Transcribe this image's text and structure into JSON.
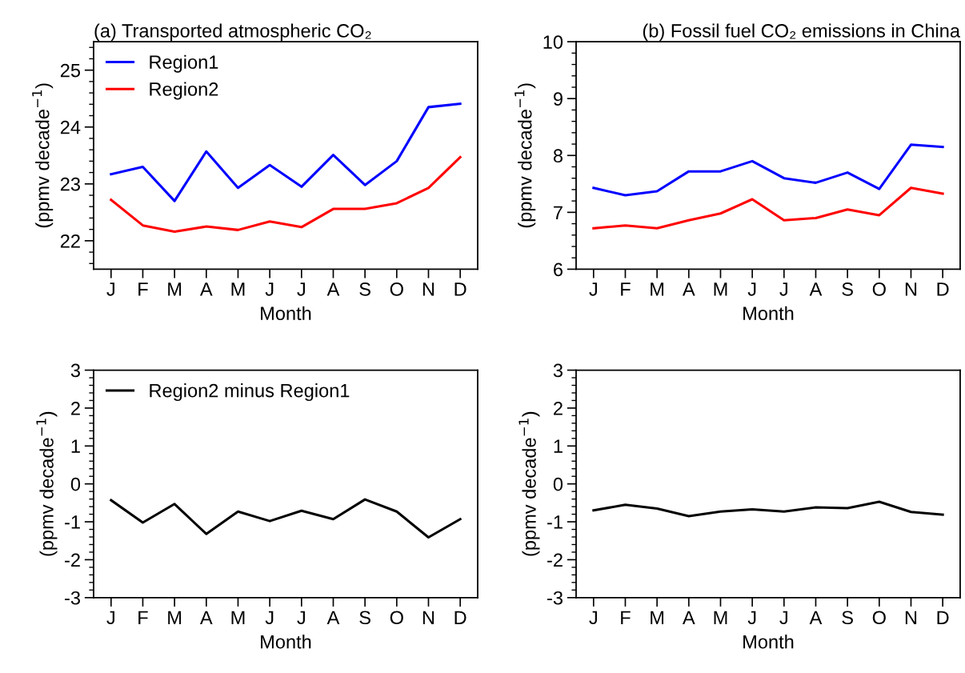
{
  "chart_data": [
    {
      "type": "line",
      "title": "(a) Transported atmospheric CO₂",
      "xlabel": "Month",
      "ylabel": "(ppmv decade$^{−1}$)",
      "categories": [
        "J",
        "F",
        "M",
        "A",
        "M",
        "J",
        "J",
        "A",
        "S",
        "O",
        "N",
        "D"
      ],
      "series": [
        {
          "name": "Region1",
          "color": "#0000ff",
          "values": [
            23.17,
            23.3,
            22.7,
            23.57,
            22.93,
            23.33,
            22.95,
            23.51,
            22.98,
            23.4,
            24.35,
            24.41
          ]
        },
        {
          "name": "Region2",
          "color": "#ff0000",
          "values": [
            22.72,
            22.27,
            22.16,
            22.25,
            22.19,
            22.34,
            22.24,
            22.56,
            22.56,
            22.66,
            22.93,
            23.47
          ]
        }
      ],
      "ylim": [
        21.5,
        25.5
      ],
      "yticks": [
        {
          "value": 21.6,
          "label": null
        },
        {
          "value": 21.8,
          "label": null
        },
        22,
        {
          "value": 22.2,
          "label": null
        },
        {
          "value": 22.4,
          "label": null
        },
        {
          "value": 22.6,
          "label": null
        },
        {
          "value": 22.8,
          "label": null
        },
        23,
        {
          "value": 23.2,
          "label": null
        },
        {
          "value": 23.4,
          "label": null
        },
        {
          "value": 23.6,
          "label": null
        },
        {
          "value": 23.8,
          "label": null
        },
        24,
        {
          "value": 24.2,
          "label": null
        },
        {
          "value": 24.4,
          "label": null
        },
        {
          "value": 24.6,
          "label": null
        },
        {
          "value": 24.8,
          "label": null
        },
        25,
        {
          "value": 25.2,
          "label": null
        },
        {
          "value": 25.4,
          "label": null
        }
      ],
      "legend": "top left",
      "grid": false
    },
    {
      "type": "line",
      "title": "(b) Fossil fuel CO₂ emissions in China",
      "xlabel": "Month",
      "ylabel": "(ppmv decade$^{−1}$)",
      "categories": [
        "J",
        "F",
        "M",
        "A",
        "M",
        "J",
        "J",
        "A",
        "S",
        "O",
        "N",
        "D"
      ],
      "series": [
        {
          "color": "#0000ff",
          "values": [
            7.43,
            7.3,
            7.37,
            7.72,
            7.72,
            7.9,
            7.6,
            7.52,
            7.7,
            7.41,
            8.19,
            8.15
          ]
        },
        {
          "color": "#ff0000",
          "values": [
            6.72,
            6.77,
            6.72,
            6.86,
            6.98,
            7.23,
            6.86,
            6.9,
            7.05,
            6.95,
            7.43,
            7.33
          ]
        }
      ],
      "ylim": [
        6,
        10
      ],
      "yticks": [
        6,
        {
          "value": 6.2,
          "label": null
        },
        {
          "value": 6.4,
          "label": null
        },
        {
          "value": 6.6,
          "label": null
        },
        {
          "value": 6.8,
          "label": null
        },
        7,
        {
          "value": 7.2,
          "label": null
        },
        {
          "value": 7.4,
          "label": null
        },
        {
          "value": 7.6,
          "label": null
        },
        {
          "value": 7.8,
          "label": null
        },
        8,
        {
          "value": 8.2,
          "label": null
        },
        {
          "value": 8.4,
          "label": null
        },
        {
          "value": 8.6,
          "label": null
        },
        {
          "value": 8.8,
          "label": null
        },
        9,
        {
          "value": 9.2,
          "label": null
        },
        {
          "value": 9.4,
          "label": null
        },
        {
          "value": 9.6,
          "label": null
        },
        {
          "value": 9.8,
          "label": null
        },
        10
      ],
      "legend": false,
      "grid": false
    },
    {
      "type": "line",
      "xlabel": "Month",
      "ylabel": "(ppmv decade$^{−1}$)",
      "categories": [
        "J",
        "F",
        "M",
        "A",
        "M",
        "J",
        "J",
        "A",
        "S",
        "O",
        "N",
        "D"
      ],
      "series": [
        {
          "name": "Region2 minus Region1",
          "color": "#000000",
          "values": [
            -0.43,
            -1.02,
            -0.53,
            -1.32,
            -0.73,
            -0.98,
            -0.71,
            -0.93,
            -0.41,
            -0.73,
            -1.41,
            -0.93
          ]
        }
      ],
      "ylim": [
        -3,
        3
      ],
      "yticks": [
        -3,
        {
          "value": -2.8,
          "label": null
        },
        {
          "value": -2.6,
          "label": null
        },
        {
          "value": -2.4,
          "label": null
        },
        {
          "value": -2.2,
          "label": null
        },
        -2,
        {
          "value": -1.8,
          "label": null
        },
        {
          "value": -1.6,
          "label": null
        },
        {
          "value": -1.4,
          "label": null
        },
        {
          "value": -1.2,
          "label": null
        },
        -1,
        {
          "value": -0.8,
          "label": null
        },
        {
          "value": -0.6,
          "label": null
        },
        {
          "value": -0.4,
          "label": null
        },
        {
          "value": -0.2,
          "label": null
        },
        0,
        {
          "value": 0.2,
          "label": null
        },
        {
          "value": 0.4,
          "label": null
        },
        {
          "value": 0.6,
          "label": null
        },
        {
          "value": 0.8,
          "label": null
        },
        1,
        {
          "value": 1.2,
          "label": null
        },
        {
          "value": 1.4,
          "label": null
        },
        {
          "value": 1.6,
          "label": null
        },
        {
          "value": 1.8,
          "label": null
        },
        2,
        {
          "value": 2.2,
          "label": null
        },
        {
          "value": 2.4,
          "label": null
        },
        {
          "value": 2.6,
          "label": null
        },
        {
          "value": 2.8,
          "label": null
        },
        3
      ],
      "legend": "top left",
      "grid": false
    },
    {
      "type": "line",
      "xlabel": "Month",
      "ylabel": "(ppmv decade$^{−1}$)",
      "categories": [
        "J",
        "F",
        "M",
        "A",
        "M",
        "J",
        "J",
        "A",
        "S",
        "O",
        "N",
        "D"
      ],
      "series": [
        {
          "color": "#000000",
          "values": [
            -0.7,
            -0.55,
            -0.65,
            -0.85,
            -0.73,
            -0.67,
            -0.73,
            -0.62,
            -0.64,
            -0.47,
            -0.74,
            -0.81
          ]
        }
      ],
      "ylim": [
        -3,
        3
      ],
      "yticks": [
        -3,
        {
          "value": -2.8,
          "label": null
        },
        {
          "value": -2.6,
          "label": null
        },
        {
          "value": -2.4,
          "label": null
        },
        {
          "value": -2.2,
          "label": null
        },
        -2,
        {
          "value": -1.8,
          "label": null
        },
        {
          "value": -1.6,
          "label": null
        },
        {
          "value": -1.4,
          "label": null
        },
        {
          "value": -1.2,
          "label": null
        },
        -1,
        {
          "value": -0.8,
          "label": null
        },
        {
          "value": -0.6,
          "label": null
        },
        {
          "value": -0.4,
          "label": null
        },
        {
          "value": -0.2,
          "label": null
        },
        0,
        {
          "value": 0.2,
          "label": null
        },
        {
          "value": 0.4,
          "label": null
        },
        {
          "value": 0.6,
          "label": null
        },
        {
          "value": 0.8,
          "label": null
        },
        1,
        {
          "value": 1.2,
          "label": null
        },
        {
          "value": 1.4,
          "label": null
        },
        {
          "value": 1.6,
          "label": null
        },
        {
          "value": 1.8,
          "label": null
        },
        2,
        {
          "value": 2.2,
          "label": null
        },
        {
          "value": 2.4,
          "label": null
        },
        {
          "value": 2.6,
          "label": null
        },
        {
          "value": 2.8,
          "label": null
        },
        3
      ],
      "legend": false,
      "grid": false
    }
  ]
}
